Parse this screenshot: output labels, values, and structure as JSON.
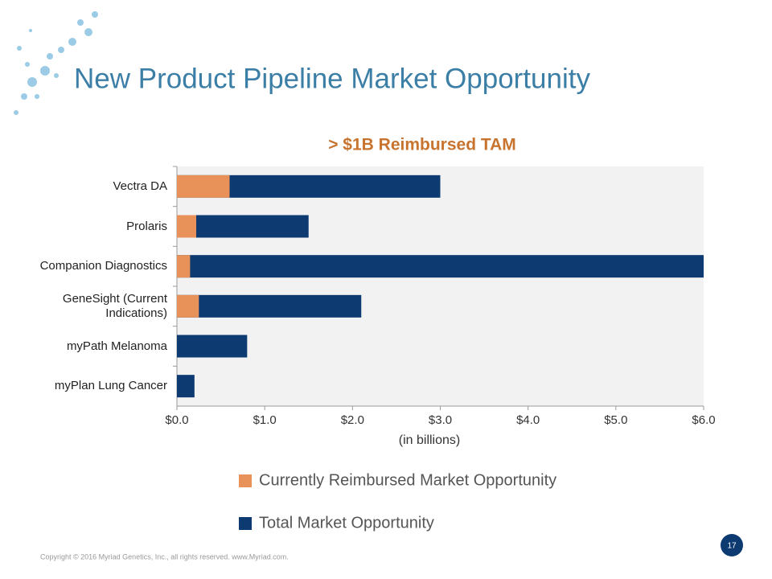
{
  "title": "New Product Pipeline Market Opportunity",
  "footer": "Copyright © 2016 Myriad Genetics, Inc., all rights reserved.  www.Myriad.com.",
  "page_number": "17",
  "chart_data": {
    "type": "bar",
    "orientation": "horizontal",
    "overlap": true,
    "title": "> $1B Reimbursed TAM",
    "x_label": "(in billions)",
    "categories": [
      "Vectra DA",
      "Prolaris",
      "Companion Diagnostics",
      "GeneSight (Current Indications)",
      "myPath Melanoma",
      "myPlan Lung Cancer"
    ],
    "series": [
      {
        "name": "Total Market Opportunity",
        "color": "#0e3a72",
        "values": [
          3.0,
          1.5,
          6.0,
          2.1,
          0.8,
          0.2
        ]
      },
      {
        "name": "Currently Reimbursed Market Opportunity",
        "color": "#e8925a",
        "values": [
          0.6,
          0.22,
          0.15,
          0.25,
          0,
          0
        ]
      }
    ],
    "legend_order": [
      1,
      0
    ],
    "xlim": [
      0,
      6
    ],
    "xticks": [
      {
        "value": 0,
        "label": "$0.0"
      },
      {
        "value": 1,
        "label": "$1.0"
      },
      {
        "value": 2,
        "label": "$2.0"
      },
      {
        "value": 3,
        "label": "$3.0"
      },
      {
        "value": 4,
        "label": "$4.0"
      },
      {
        "value": 5,
        "label": "$5.0"
      },
      {
        "value": 6,
        "label": "$6.0"
      }
    ]
  }
}
